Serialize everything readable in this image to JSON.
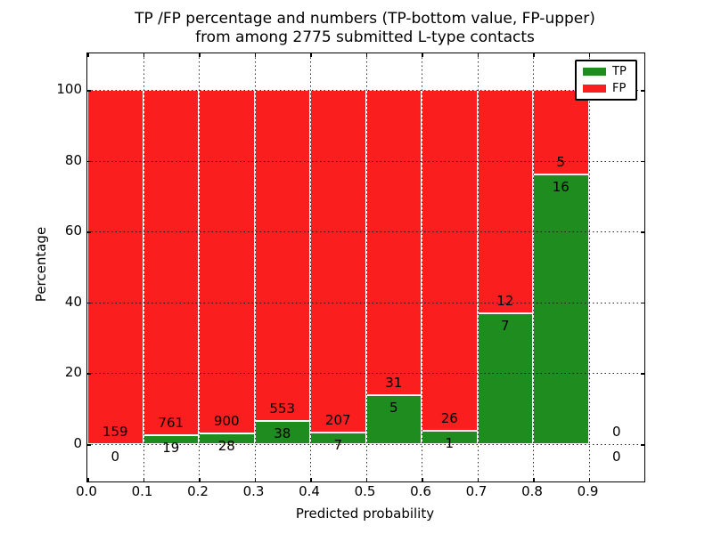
{
  "chart_data": {
    "type": "bar",
    "stacked": true,
    "percentage_normalized": true,
    "title_line1": "TP /FP percentage and numbers (TP-bottom value, FP-upper)",
    "title_line2": "from among 2775 submitted L-type contacts",
    "total_submitted_contacts": 2775,
    "xlabel": "Predicted probability",
    "ylabel": "Percentage",
    "xlim": [
      0.0,
      1.0
    ],
    "ylim_pct": [
      -10.5,
      110.5
    ],
    "grid": {
      "style": "dotted",
      "color": "#000000"
    },
    "x_tick_labels": [
      "0.0",
      "0.1",
      "0.2",
      "0.3",
      "0.4",
      "0.5",
      "0.6",
      "0.7",
      "0.8",
      "0.9"
    ],
    "x_tick_values": [
      0.0,
      0.1,
      0.2,
      0.3,
      0.4,
      0.5,
      0.6,
      0.7,
      0.8,
      0.9
    ],
    "x_grid_values": [
      0.1,
      0.2,
      0.3,
      0.4,
      0.5,
      0.6,
      0.7,
      0.8,
      0.9
    ],
    "y_tick_labels": [
      "0",
      "20",
      "40",
      "60",
      "80",
      "100"
    ],
    "y_tick_values": [
      0,
      20,
      40,
      60,
      80,
      100
    ],
    "x_bins": [
      [
        0.0,
        0.1
      ],
      [
        0.1,
        0.2
      ],
      [
        0.2,
        0.3
      ],
      [
        0.3,
        0.4
      ],
      [
        0.4,
        0.5
      ],
      [
        0.5,
        0.6
      ],
      [
        0.6,
        0.7
      ],
      [
        0.7,
        0.8
      ],
      [
        0.8,
        0.9
      ],
      [
        0.9,
        1.0
      ]
    ],
    "colors": {
      "tp": "#1e8c1e",
      "fp": "#fa1e1e"
    },
    "series": [
      {
        "name": "TP",
        "counts": [
          0,
          19,
          28,
          38,
          7,
          5,
          1,
          7,
          16,
          0
        ],
        "pct": [
          0,
          2.44,
          3.02,
          6.43,
          3.27,
          13.89,
          3.7,
          36.84,
          76.19,
          null
        ]
      },
      {
        "name": "FP",
        "counts": [
          159,
          761,
          900,
          553,
          207,
          31,
          26,
          12,
          5,
          0
        ],
        "pct": [
          100,
          97.56,
          96.98,
          93.57,
          96.73,
          86.11,
          96.3,
          63.16,
          23.81,
          null
        ]
      }
    ],
    "legend": {
      "position": "upper-right",
      "entries": [
        {
          "label": "TP",
          "color_key": "tp"
        },
        {
          "label": "FP",
          "color_key": "fp"
        }
      ]
    }
  }
}
